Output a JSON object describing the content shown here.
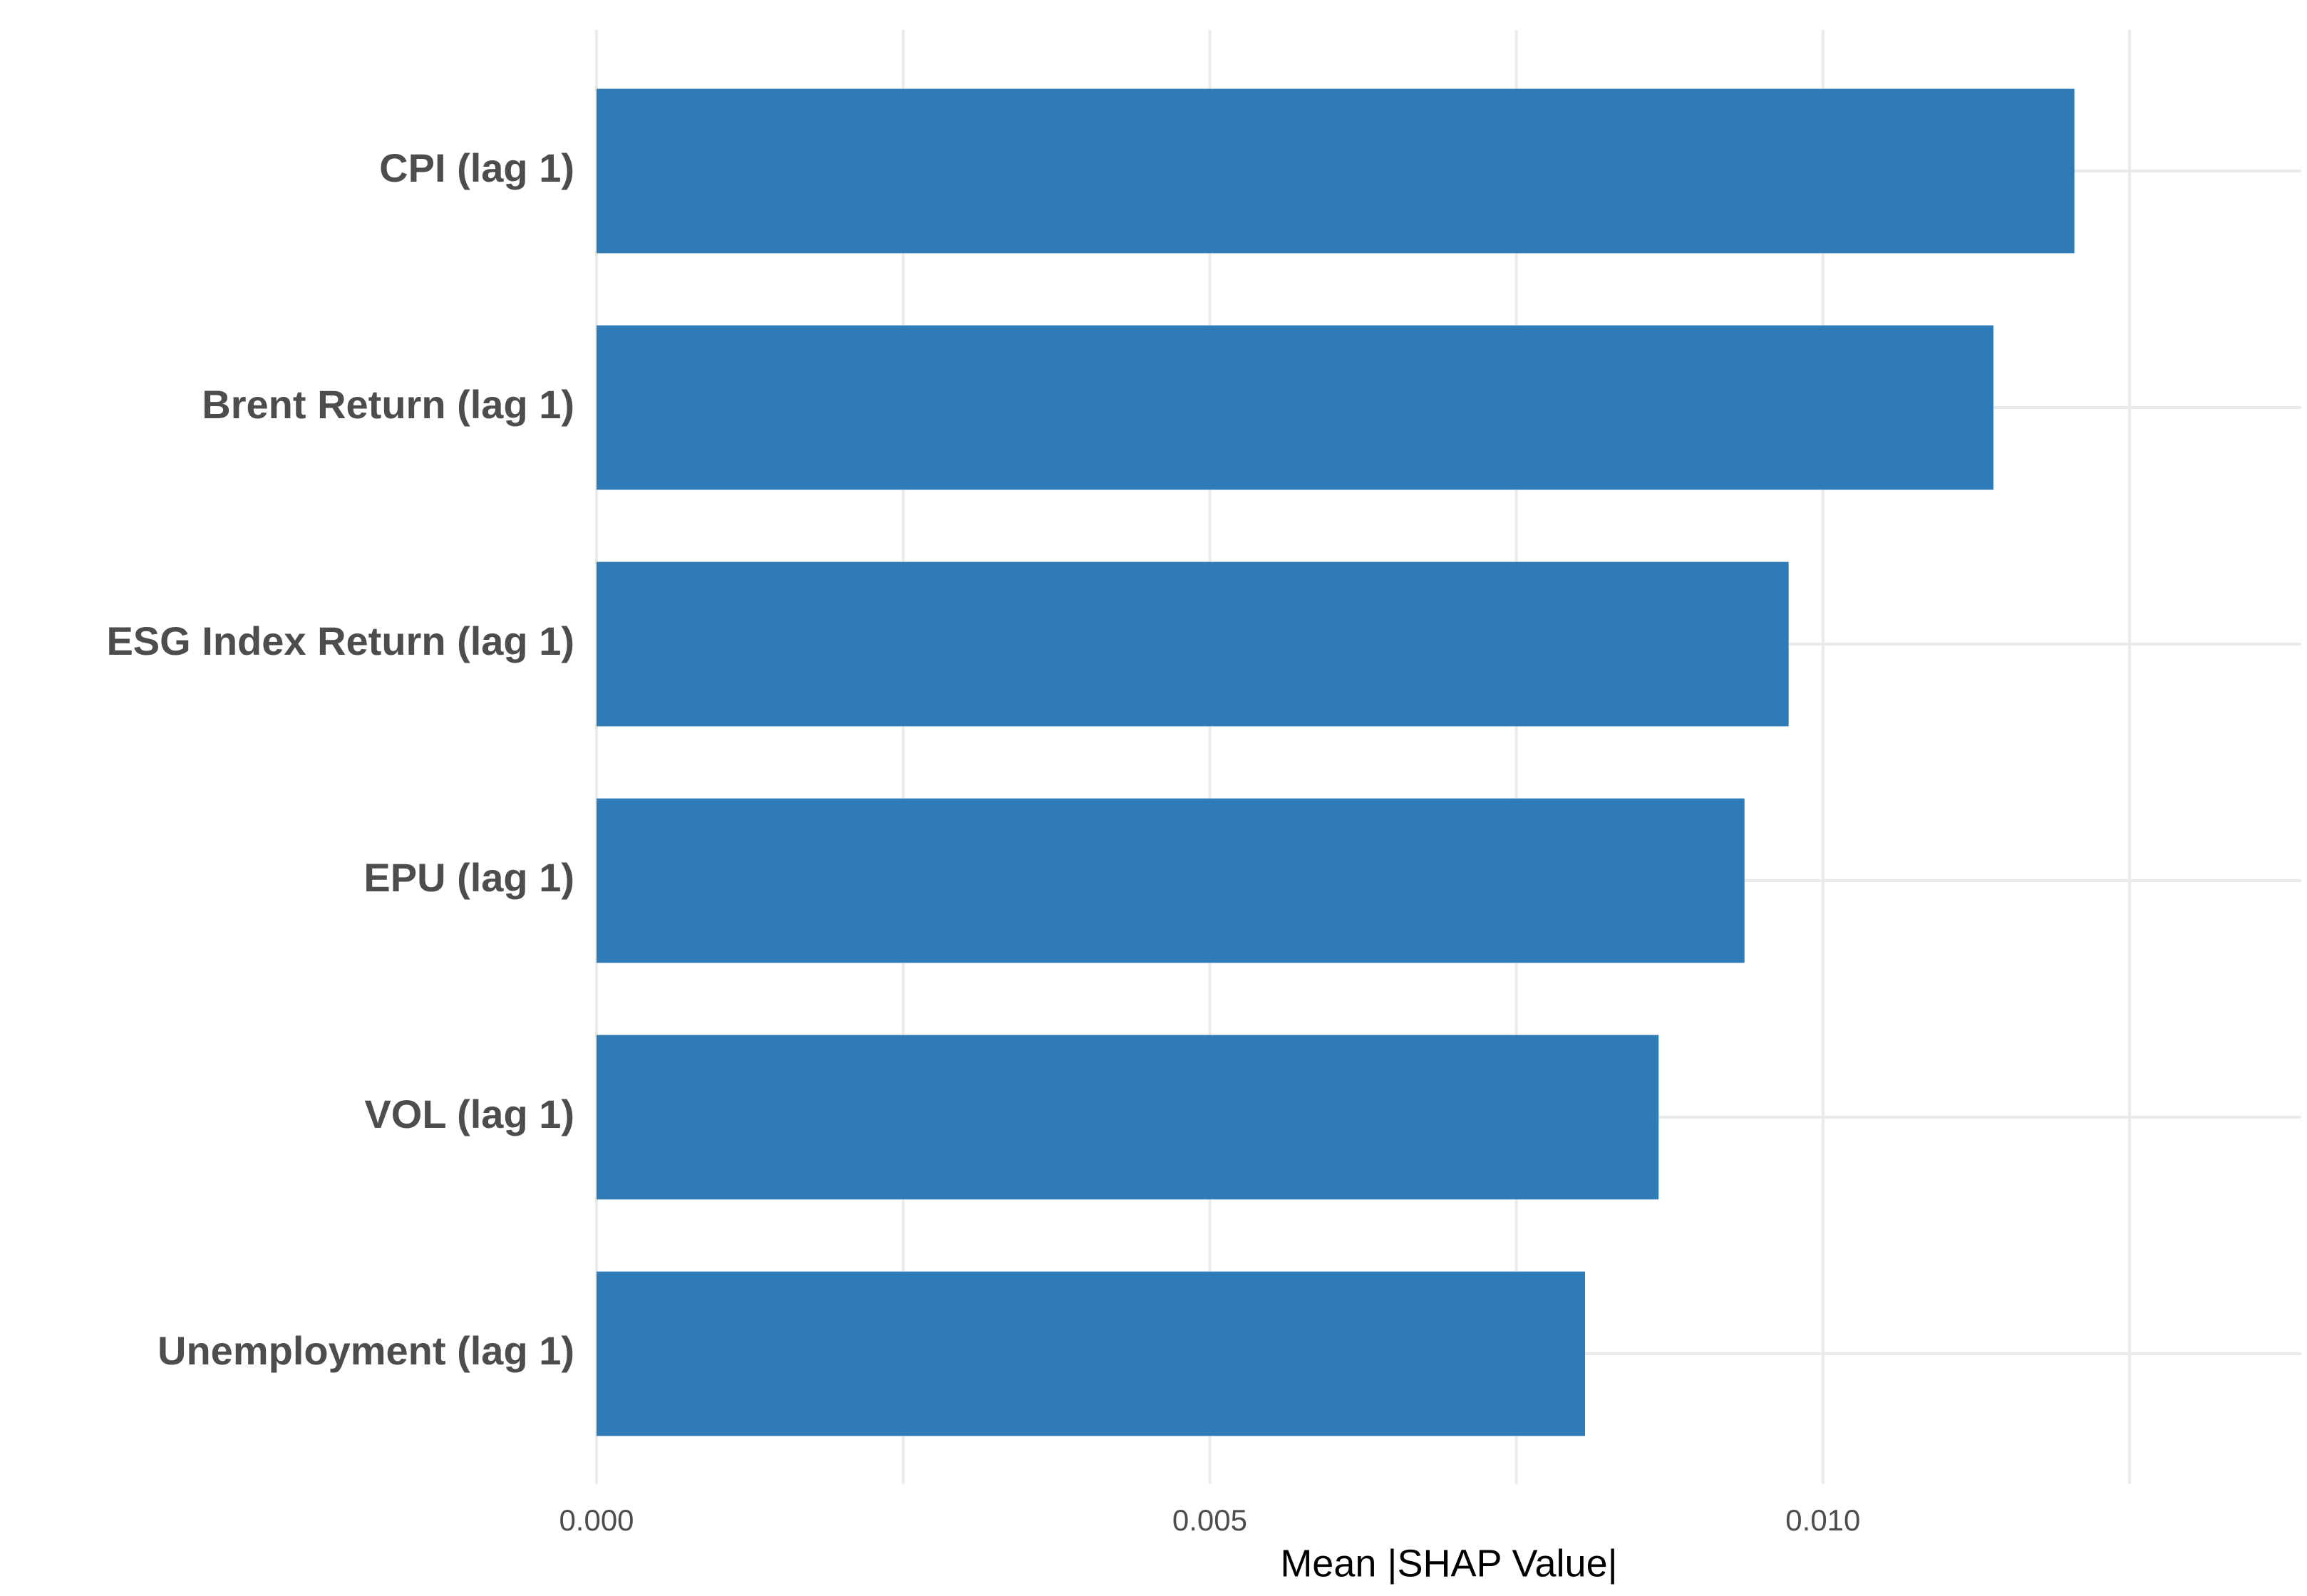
{
  "chart_data": {
    "type": "bar",
    "orientation": "horizontal",
    "x_label": "Mean |SHAP Value|",
    "categories": [
      "CPI (lag 1)",
      "Brent Return (lag 1)",
      "ESG Index Return (lag 1)",
      "EPU (lag 1)",
      "VOL (lag 1)",
      "Unemployment (lag 1)"
    ],
    "values": [
      0.01205,
      0.01139,
      0.00972,
      0.00936,
      0.00866,
      0.00806
    ],
    "color": "#2e7bb5",
    "xlim": [
      0,
      0.0139
    ],
    "xticks": [
      {
        "value": 0,
        "label": "0.000"
      },
      {
        "value": 0.005,
        "label": "0.005"
      },
      {
        "value": 0.01,
        "label": "0.010"
      }
    ],
    "minor_xticks": [
      0.0025,
      0.0075,
      0.0125
    ],
    "grid": true
  }
}
